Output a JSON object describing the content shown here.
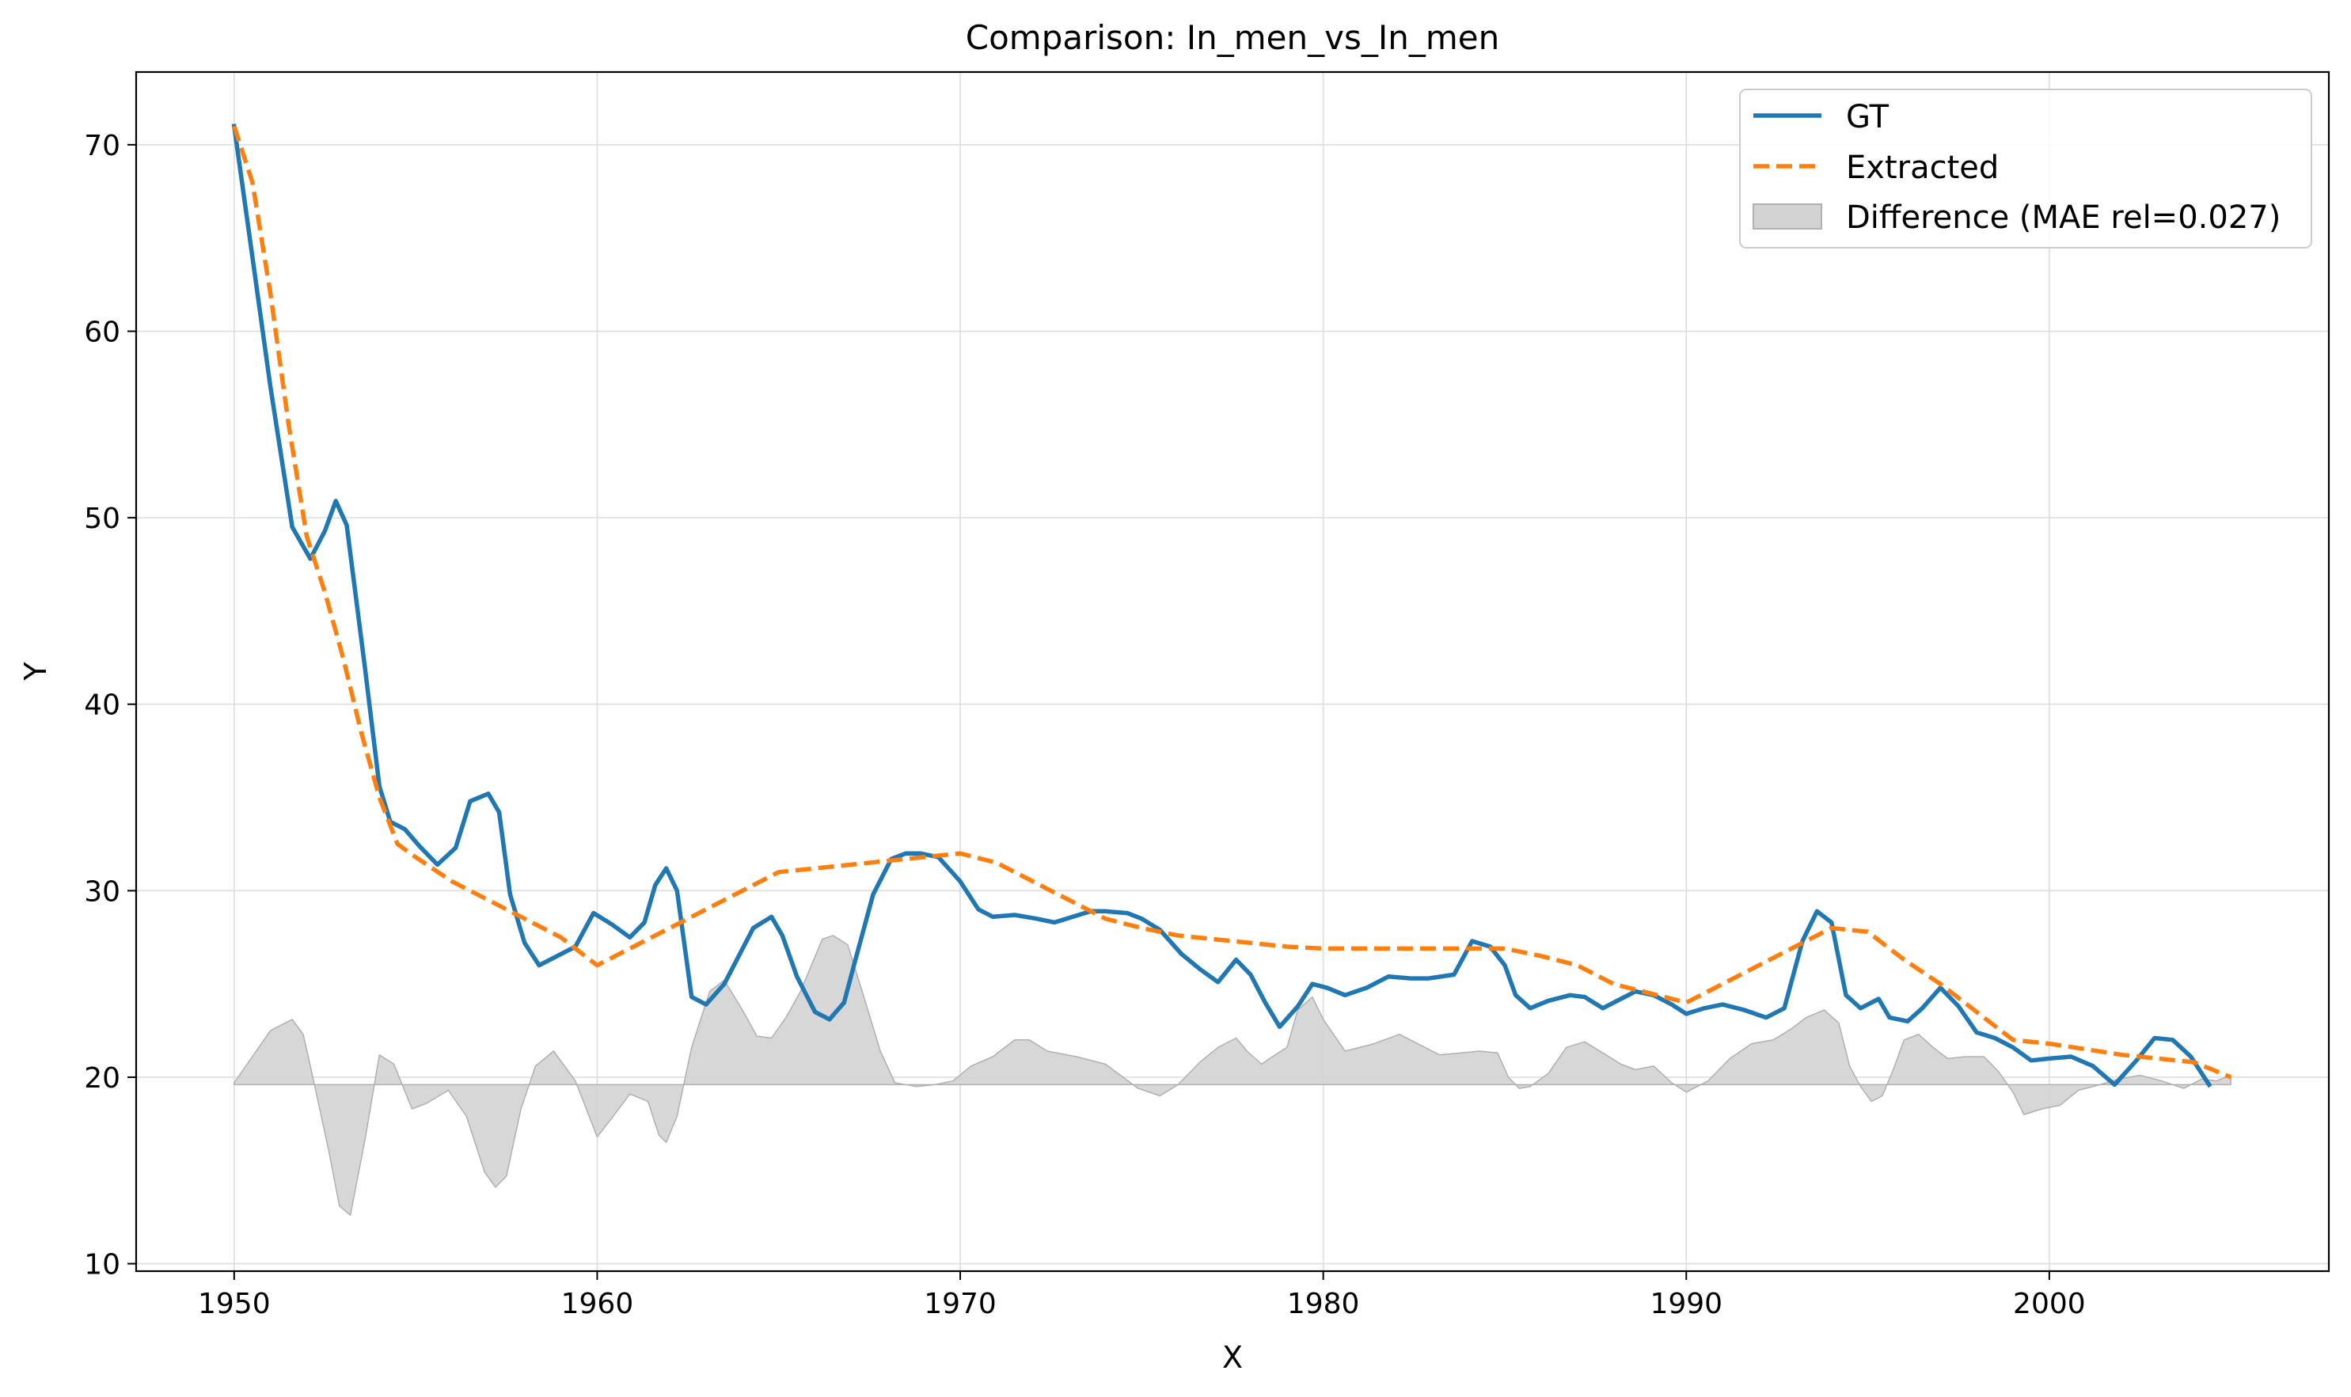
{
  "colors": {
    "gt": "#1f77b4",
    "extracted": "#ff7f0e",
    "difference": "#d3d3d3",
    "difference_edge": "#b0b0b0",
    "grid": "#dddddd"
  },
  "chart_data": {
    "type": "line",
    "title": "Comparison: In_men_vs_In_men",
    "xlabel": "X",
    "ylabel": "Y",
    "xlim": [
      1947.3,
      2007.7
    ],
    "ylim": [
      9.6,
      73.9
    ],
    "xticks": [
      1950,
      1960,
      1970,
      1980,
      1990,
      2000
    ],
    "yticks": [
      10,
      20,
      30,
      40,
      50,
      60,
      70
    ],
    "grid": true,
    "legend_position": "top-right",
    "difference_baseline": 19.6,
    "series": [
      {
        "name": "GT",
        "style": "solid",
        "x": [
          1950.0,
          1950.5,
          1951.0,
          1951.6,
          1952.1,
          1952.5,
          1952.8,
          1953.1,
          1953.6,
          1954.0,
          1954.3,
          1954.7,
          1955.1,
          1955.6,
          1956.1,
          1956.5,
          1957.0,
          1957.3,
          1957.6,
          1958.0,
          1958.4,
          1958.9,
          1959.4,
          1959.9,
          1960.4,
          1960.9,
          1961.3,
          1961.6,
          1961.9,
          1962.2,
          1962.6,
          1963.0,
          1963.5,
          1963.9,
          1964.3,
          1964.8,
          1965.1,
          1965.5,
          1966.0,
          1966.4,
          1966.8,
          1967.1,
          1967.6,
          1968.1,
          1968.5,
          1968.9,
          1969.4,
          1970.0,
          1970.5,
          1970.9,
          1971.5,
          1972.1,
          1972.6,
          1973.1,
          1973.6,
          1974.0,
          1974.6,
          1975.0,
          1975.5,
          1976.1,
          1976.6,
          1977.1,
          1977.6,
          1978.0,
          1978.4,
          1978.8,
          1979.3,
          1979.7,
          1980.1,
          1980.6,
          1981.2,
          1981.8,
          1982.4,
          1982.9,
          1983.6,
          1984.1,
          1984.6,
          1985.0,
          1985.3,
          1985.7,
          1986.2,
          1986.8,
          1987.2,
          1987.7,
          1988.2,
          1988.6,
          1989.1,
          1989.6,
          1990.0,
          1990.5,
          1991.0,
          1991.6,
          1992.2,
          1992.7,
          1993.2,
          1993.6,
          1994.0,
          1994.4,
          1994.8,
          1995.0,
          1995.3,
          1995.6,
          1996.1,
          1996.5,
          1997.0,
          1997.5,
          1998.0,
          1998.5,
          1999.0,
          1999.5,
          2000.0,
          2000.6,
          2001.2,
          2001.8,
          2002.4,
          2002.9,
          2003.4,
          2003.9,
          2004.4
        ],
        "y": [
          71.0,
          64.0,
          57.0,
          49.5,
          47.8,
          49.3,
          50.9,
          49.6,
          42.0,
          35.6,
          33.7,
          33.3,
          32.4,
          31.4,
          32.3,
          34.8,
          35.2,
          34.2,
          29.8,
          27.2,
          26.0,
          26.5,
          27.0,
          28.8,
          28.2,
          27.5,
          28.3,
          30.3,
          31.2,
          30.0,
          24.3,
          23.9,
          25.0,
          26.5,
          28.0,
          28.6,
          27.6,
          25.4,
          23.5,
          23.1,
          24.0,
          26.2,
          29.8,
          31.7,
          32.0,
          32.0,
          31.8,
          30.5,
          29.0,
          28.6,
          28.7,
          28.5,
          28.3,
          28.6,
          28.9,
          28.9,
          28.8,
          28.5,
          27.9,
          26.6,
          25.8,
          25.1,
          26.3,
          25.5,
          24.0,
          22.7,
          23.8,
          25.0,
          24.8,
          24.4,
          24.8,
          25.4,
          25.3,
          25.3,
          25.5,
          27.3,
          27.0,
          26.0,
          24.4,
          23.7,
          24.1,
          24.4,
          24.3,
          23.7,
          24.2,
          24.6,
          24.4,
          23.9,
          23.4,
          23.7,
          23.9,
          23.6,
          23.2,
          23.7,
          27.3,
          28.9,
          28.3,
          24.4,
          23.7,
          23.9,
          24.2,
          23.2,
          23.0,
          23.7,
          24.8,
          23.8,
          22.4,
          22.1,
          21.6,
          20.9,
          21.0,
          21.1,
          20.6,
          19.6,
          20.9,
          22.1,
          22.0,
          21.1,
          19.6
        ]
      },
      {
        "name": "Extracted",
        "style": "dashed",
        "x": [
          1950.0,
          1950.5,
          1951.0,
          1951.5,
          1952.0,
          1952.5,
          1953.0,
          1953.5,
          1954.0,
          1954.5,
          1955.0,
          1956.0,
          1957.0,
          1958.0,
          1959.0,
          1960.0,
          1961.0,
          1962.0,
          1963.0,
          1964.0,
          1965.0,
          1966.0,
          1967.0,
          1968.0,
          1969.0,
          1970.0,
          1971.0,
          1972.0,
          1973.0,
          1974.0,
          1975.0,
          1976.0,
          1977.0,
          1978.0,
          1979.0,
          1980.0,
          1981.0,
          1982.0,
          1983.0,
          1984.0,
          1985.0,
          1986.0,
          1987.0,
          1988.0,
          1989.0,
          1990.0,
          1991.0,
          1992.0,
          1993.0,
          1994.0,
          1995.0,
          1996.0,
          1997.0,
          1998.0,
          1999.0,
          2000.0,
          2001.0,
          2002.0,
          2003.0,
          2004.0,
          2005.0
        ],
        "y": [
          71.0,
          68.0,
          62.0,
          55.0,
          49.0,
          46.0,
          42.5,
          38.5,
          35.0,
          32.5,
          31.8,
          30.5,
          29.5,
          28.5,
          27.5,
          26.0,
          27.0,
          28.0,
          29.0,
          30.0,
          31.0,
          31.2,
          31.4,
          31.6,
          31.8,
          32.0,
          31.5,
          30.5,
          29.5,
          28.5,
          28.0,
          27.6,
          27.4,
          27.2,
          27.0,
          26.9,
          26.9,
          26.9,
          26.9,
          26.9,
          26.9,
          26.5,
          26.0,
          25.0,
          24.5,
          24.0,
          25.0,
          26.0,
          27.0,
          28.0,
          27.8,
          26.3,
          25.0,
          23.5,
          22.0,
          21.8,
          21.5,
          21.2,
          21.0,
          20.8,
          20.0
        ]
      },
      {
        "name": "Difference (MAE rel=0.027)",
        "style": "fill",
        "x": [
          1950.0,
          1950.5,
          1951.0,
          1951.6,
          1951.9,
          1952.1,
          1952.6,
          1952.9,
          1953.2,
          1953.6,
          1954.0,
          1954.4,
          1954.9,
          1955.3,
          1955.9,
          1956.4,
          1956.9,
          1957.2,
          1957.5,
          1957.9,
          1958.3,
          1958.8,
          1959.4,
          1960.0,
          1960.4,
          1960.9,
          1961.4,
          1961.7,
          1961.9,
          1962.2,
          1962.6,
          1963.1,
          1963.5,
          1964.0,
          1964.4,
          1964.8,
          1965.2,
          1965.6,
          1966.2,
          1966.5,
          1966.9,
          1967.3,
          1967.8,
          1968.2,
          1968.8,
          1969.3,
          1969.8,
          1970.3,
          1970.9,
          1971.5,
          1971.9,
          1972.4,
          1973.2,
          1974.0,
          1974.9,
          1975.5,
          1976.0,
          1976.6,
          1977.1,
          1977.6,
          1977.9,
          1978.3,
          1978.6,
          1979.0,
          1979.3,
          1979.7,
          1980.0,
          1980.6,
          1981.4,
          1982.1,
          1982.6,
          1983.2,
          1983.8,
          1984.3,
          1984.8,
          1985.1,
          1985.4,
          1985.7,
          1986.2,
          1986.7,
          1987.2,
          1987.7,
          1988.2,
          1988.6,
          1989.1,
          1989.6,
          1990.0,
          1990.6,
          1991.2,
          1991.8,
          1992.4,
          1992.9,
          1993.3,
          1993.8,
          1994.2,
          1994.5,
          1994.8,
          1995.1,
          1995.4,
          1995.7,
          1996.0,
          1996.4,
          1996.8,
          1997.2,
          1997.7,
          1998.2,
          1998.6,
          1999.0,
          1999.3,
          1999.8,
          2000.3,
          2000.8,
          2001.4,
          2001.9,
          2002.5,
          2003.1,
          2003.7,
          2004.2,
          2004.6,
          2005.0
        ],
        "y": [
          19.7,
          21.1,
          22.5,
          23.1,
          22.3,
          20.6,
          16.1,
          13.1,
          12.6,
          16.6,
          21.2,
          20.7,
          18.3,
          18.6,
          19.3,
          17.9,
          14.9,
          14.1,
          14.7,
          18.3,
          20.6,
          21.4,
          19.8,
          16.8,
          17.8,
          19.1,
          18.7,
          16.9,
          16.5,
          17.9,
          21.6,
          24.6,
          25.2,
          23.6,
          22.2,
          22.1,
          23.2,
          24.6,
          27.4,
          27.6,
          27.1,
          24.6,
          21.4,
          19.7,
          19.5,
          19.6,
          19.8,
          20.6,
          21.1,
          22.0,
          22.0,
          21.4,
          21.1,
          20.7,
          19.4,
          19.0,
          19.6,
          20.8,
          21.6,
          22.1,
          21.4,
          20.7,
          21.1,
          21.6,
          23.6,
          24.3,
          23.1,
          21.4,
          21.8,
          22.3,
          21.8,
          21.2,
          21.3,
          21.4,
          21.3,
          20.0,
          19.4,
          19.5,
          20.2,
          21.6,
          21.9,
          21.3,
          20.7,
          20.4,
          20.6,
          19.7,
          19.2,
          19.8,
          21.0,
          21.8,
          22.0,
          22.6,
          23.2,
          23.6,
          22.9,
          20.6,
          19.5,
          18.7,
          19.0,
          20.4,
          22.0,
          22.3,
          21.6,
          21.0,
          21.1,
          21.1,
          20.3,
          19.2,
          18.0,
          18.3,
          18.5,
          19.3,
          19.6,
          19.9,
          20.1,
          19.8,
          19.4,
          19.9,
          19.8,
          20.1
        ]
      }
    ]
  }
}
